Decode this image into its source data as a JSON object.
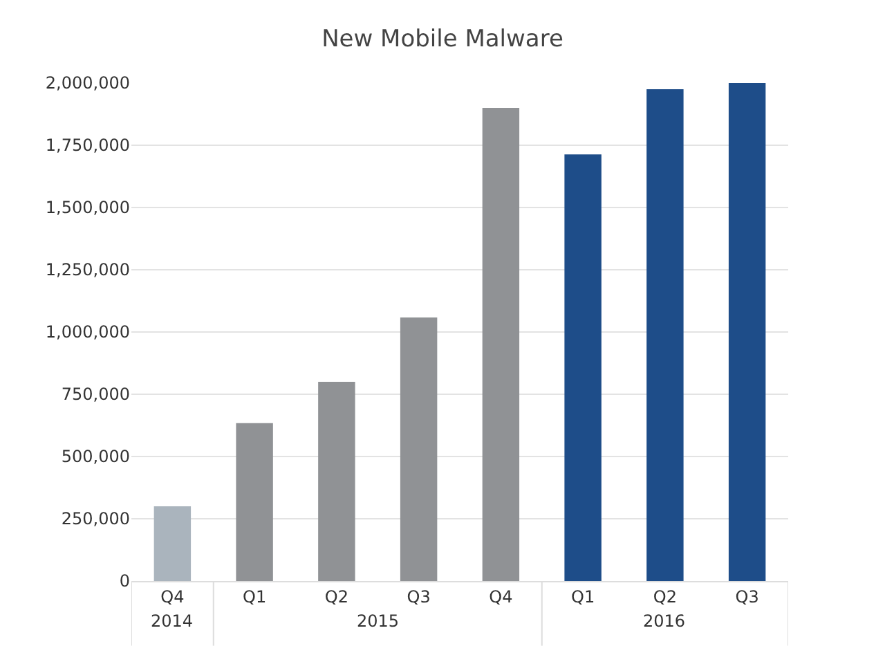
{
  "chart_data": {
    "type": "bar",
    "title": "New Mobile Malware",
    "categories": [
      "Q4",
      "Q1",
      "Q2",
      "Q3",
      "Q4",
      "Q1",
      "Q2",
      "Q3"
    ],
    "values": [
      300000,
      634000,
      800000,
      1058000,
      1900000,
      1713000,
      1975000,
      2000000
    ],
    "colors": [
      "#aab4bd",
      "#909295",
      "#909295",
      "#909295",
      "#909295",
      "#1e4d89",
      "#1e4d89",
      "#1e4d89"
    ],
    "annotations": [
      "2014",
      "2015",
      "2016"
    ],
    "ylim": [
      0,
      2000000
    ],
    "yticks": [
      {
        "value": 0,
        "label": "0"
      },
      {
        "value": 250000,
        "label": "250,000"
      },
      {
        "value": 500000,
        "label": "500,000"
      },
      {
        "value": 750000,
        "label": "750,000"
      },
      {
        "value": 1000000,
        "label": "1,000,000"
      },
      {
        "value": 1250000,
        "label": "1,250,000"
      },
      {
        "value": 1500000,
        "label": "1,500,000"
      },
      {
        "value": 1750000,
        "label": "1,750,000"
      },
      {
        "value": 2000000,
        "label": "2,000,000"
      }
    ],
    "grid": "y"
  }
}
